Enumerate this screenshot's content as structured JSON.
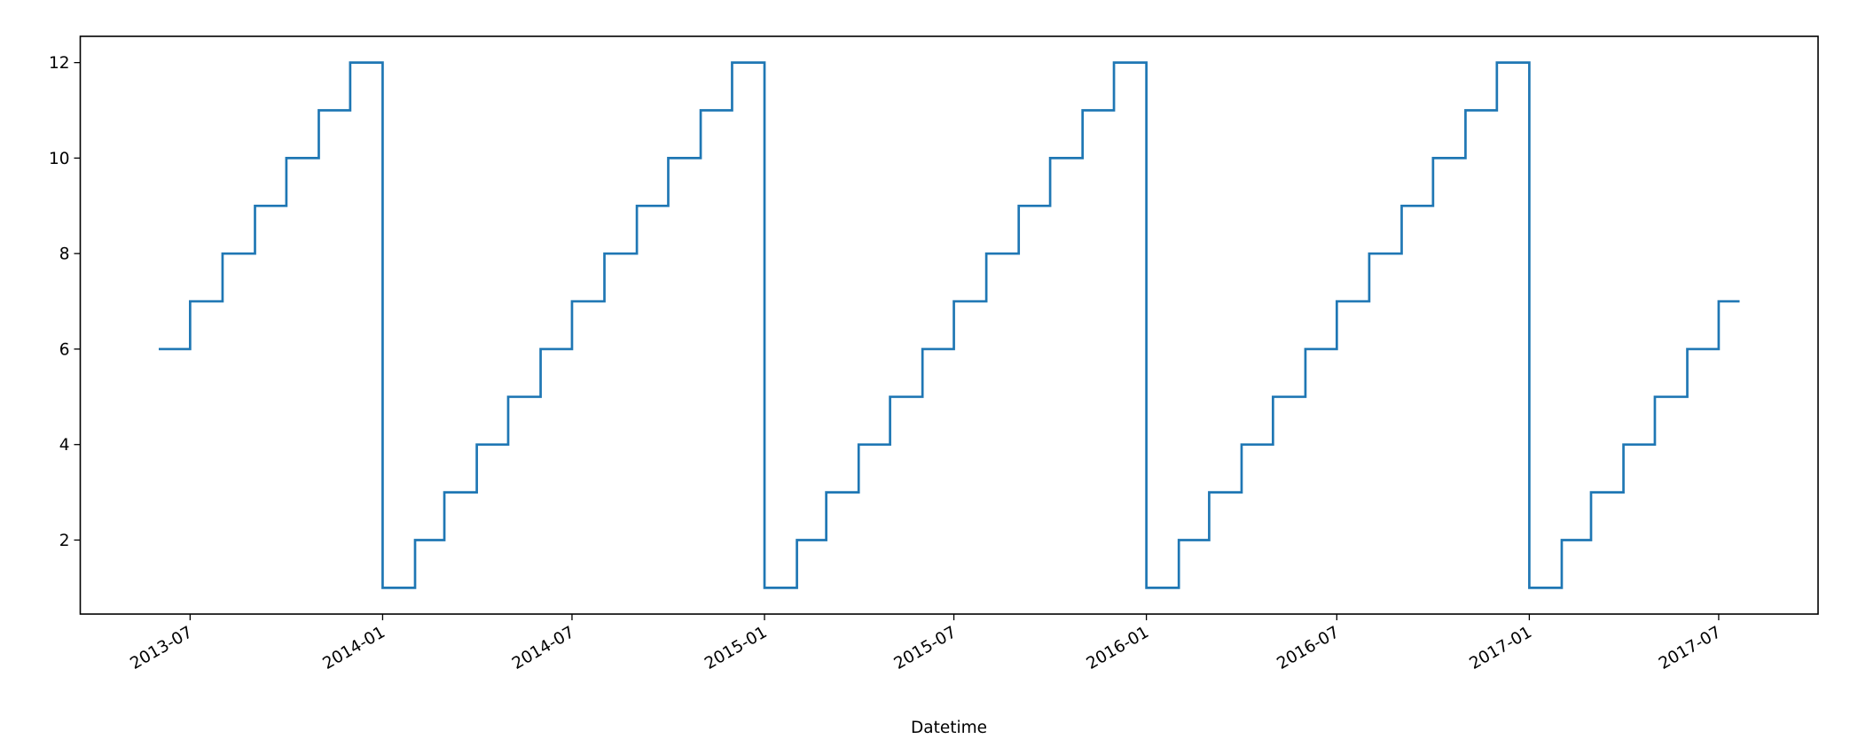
{
  "chart_data": {
    "type": "line",
    "drawstyle": "steps-post",
    "title": "",
    "xlabel": "Datetime",
    "ylabel": "",
    "line_color": "#1f77b4",
    "grid": false,
    "xlim": [
      "2013-03-18",
      "2017-10-04"
    ],
    "ylim": [
      0.45,
      12.55
    ],
    "xticks": [
      "2013-07",
      "2014-01",
      "2014-07",
      "2015-01",
      "2015-07",
      "2016-01",
      "2016-07",
      "2017-01",
      "2017-07"
    ],
    "yticks": [
      2,
      4,
      6,
      8,
      10,
      12
    ],
    "series": [
      {
        "x": [
          "2013-06-01",
          "2013-07-01",
          "2013-08-01",
          "2013-09-01",
          "2013-10-01",
          "2013-11-01",
          "2013-12-01",
          "2014-01-01",
          "2014-02-01",
          "2014-03-01",
          "2014-04-01",
          "2014-05-01",
          "2014-06-01",
          "2014-07-01",
          "2014-08-01",
          "2014-09-01",
          "2014-10-01",
          "2014-11-01",
          "2014-12-01",
          "2015-01-01",
          "2015-02-01",
          "2015-03-01",
          "2015-04-01",
          "2015-05-01",
          "2015-06-01",
          "2015-07-01",
          "2015-08-01",
          "2015-09-01",
          "2015-10-01",
          "2015-11-01",
          "2015-12-01",
          "2016-01-01",
          "2016-02-01",
          "2016-03-01",
          "2016-04-01",
          "2016-05-01",
          "2016-06-01",
          "2016-07-01",
          "2016-08-01",
          "2016-09-01",
          "2016-10-01",
          "2016-11-01",
          "2016-12-01",
          "2017-01-01",
          "2017-02-01",
          "2017-03-01",
          "2017-04-01",
          "2017-05-01",
          "2017-06-01",
          "2017-07-01",
          "2017-07-21"
        ],
        "y": [
          6,
          7,
          8,
          9,
          10,
          11,
          12,
          1,
          2,
          3,
          4,
          5,
          6,
          7,
          8,
          9,
          10,
          11,
          12,
          1,
          2,
          3,
          4,
          5,
          6,
          7,
          8,
          9,
          10,
          11,
          12,
          1,
          2,
          3,
          4,
          5,
          6,
          7,
          8,
          9,
          10,
          11,
          12,
          1,
          2,
          3,
          4,
          5,
          6,
          7,
          7
        ]
      }
    ]
  }
}
